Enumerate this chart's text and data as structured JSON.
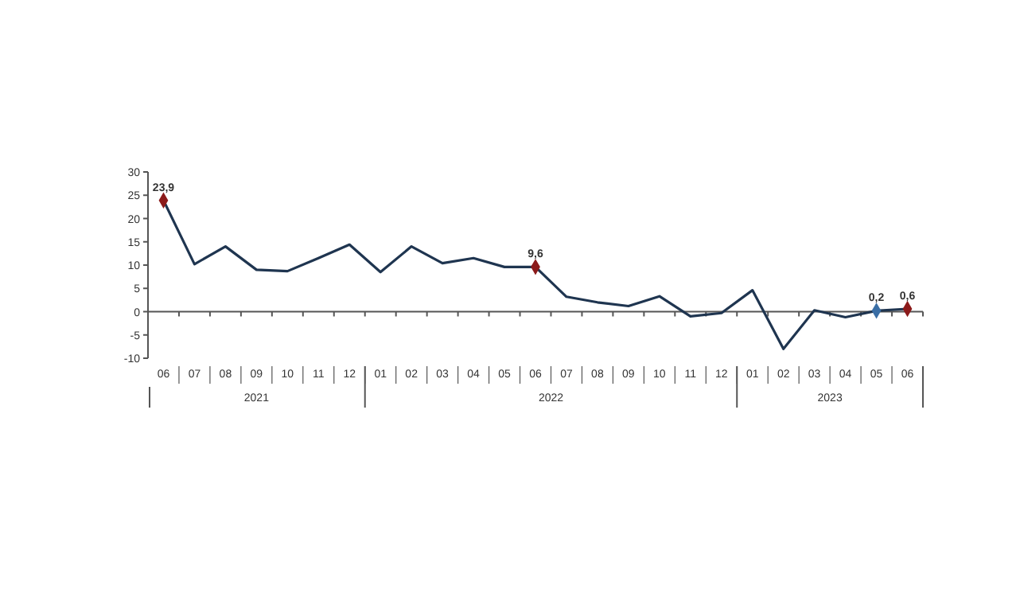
{
  "chart_data": {
    "type": "line",
    "categories": [
      "06",
      "07",
      "08",
      "09",
      "10",
      "11",
      "12",
      "01",
      "02",
      "03",
      "04",
      "05",
      "06",
      "07",
      "08",
      "09",
      "10",
      "11",
      "12",
      "01",
      "02",
      "03",
      "04",
      "05",
      "06"
    ],
    "series": [
      {
        "color": "#1f3550",
        "values": [
          23.9,
          10.2,
          14,
          9,
          8.7,
          11.5,
          14.4,
          8.5,
          14,
          10.4,
          11.5,
          9.6,
          9.6,
          3.2,
          2,
          1.2,
          3.3,
          -1,
          -0.3,
          4.6,
          -8,
          0.3,
          -1.2,
          0.2,
          0.6
        ],
        "value_labels": [
          "23,9",
          null,
          null,
          null,
          null,
          null,
          null,
          null,
          null,
          null,
          null,
          null,
          "9,6",
          null,
          null,
          null,
          null,
          null,
          null,
          null,
          null,
          null,
          null,
          "0,2",
          "0,6"
        ],
        "colors": [
          "#8b1a1a",
          null,
          null,
          null,
          null,
          null,
          null,
          null,
          null,
          null,
          null,
          null,
          "#8b1a1a",
          null,
          null,
          null,
          null,
          null,
          null,
          null,
          null,
          null,
          null,
          "#3a6ea5",
          "#8b1a1a"
        ]
      }
    ],
    "annotations": [
      "2021",
      "2022",
      "2023"
    ],
    "ylim": [
      -10,
      30
    ],
    "yticks": [
      -10,
      -5,
      0,
      5,
      10,
      15,
      20,
      25,
      30
    ],
    "line_style": "solid"
  }
}
